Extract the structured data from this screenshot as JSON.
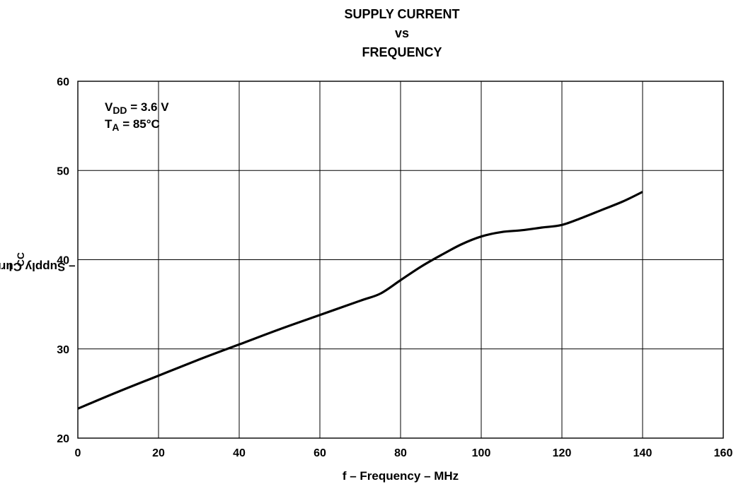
{
  "chart_data": {
    "type": "line",
    "title_lines": [
      "SUPPLY CURRENT",
      "vs",
      "FREQUENCY"
    ],
    "xlabel": "f – Frequency – MHz",
    "ylabel": {
      "prefix": "I",
      "sub": "CC",
      "rest": " – Supply Current – mA"
    },
    "xlim": [
      0,
      160
    ],
    "ylim": [
      20,
      60
    ],
    "xticks": [
      0,
      20,
      40,
      60,
      80,
      100,
      120,
      140,
      160
    ],
    "yticks": [
      20,
      30,
      40,
      50,
      60
    ],
    "grid": true,
    "annotations": [
      {
        "prefix": "V",
        "sub": "DD",
        "rest": " = 3.6 V"
      },
      {
        "prefix": "T",
        "sub": "A",
        "rest": " = 85°C"
      }
    ],
    "series": [
      {
        "x": [
          0,
          10,
          20,
          30,
          40,
          50,
          60,
          70,
          75,
          80,
          85,
          90,
          95,
          100,
          105,
          110,
          115,
          120,
          125,
          130,
          135,
          140
        ],
        "y": [
          23.3,
          25.2,
          27.0,
          28.8,
          30.5,
          32.2,
          33.8,
          35.4,
          36.2,
          37.7,
          39.2,
          40.5,
          41.7,
          42.6,
          43.1,
          43.3,
          43.6,
          43.9,
          44.7,
          45.6,
          46.5,
          47.6
        ]
      }
    ]
  }
}
